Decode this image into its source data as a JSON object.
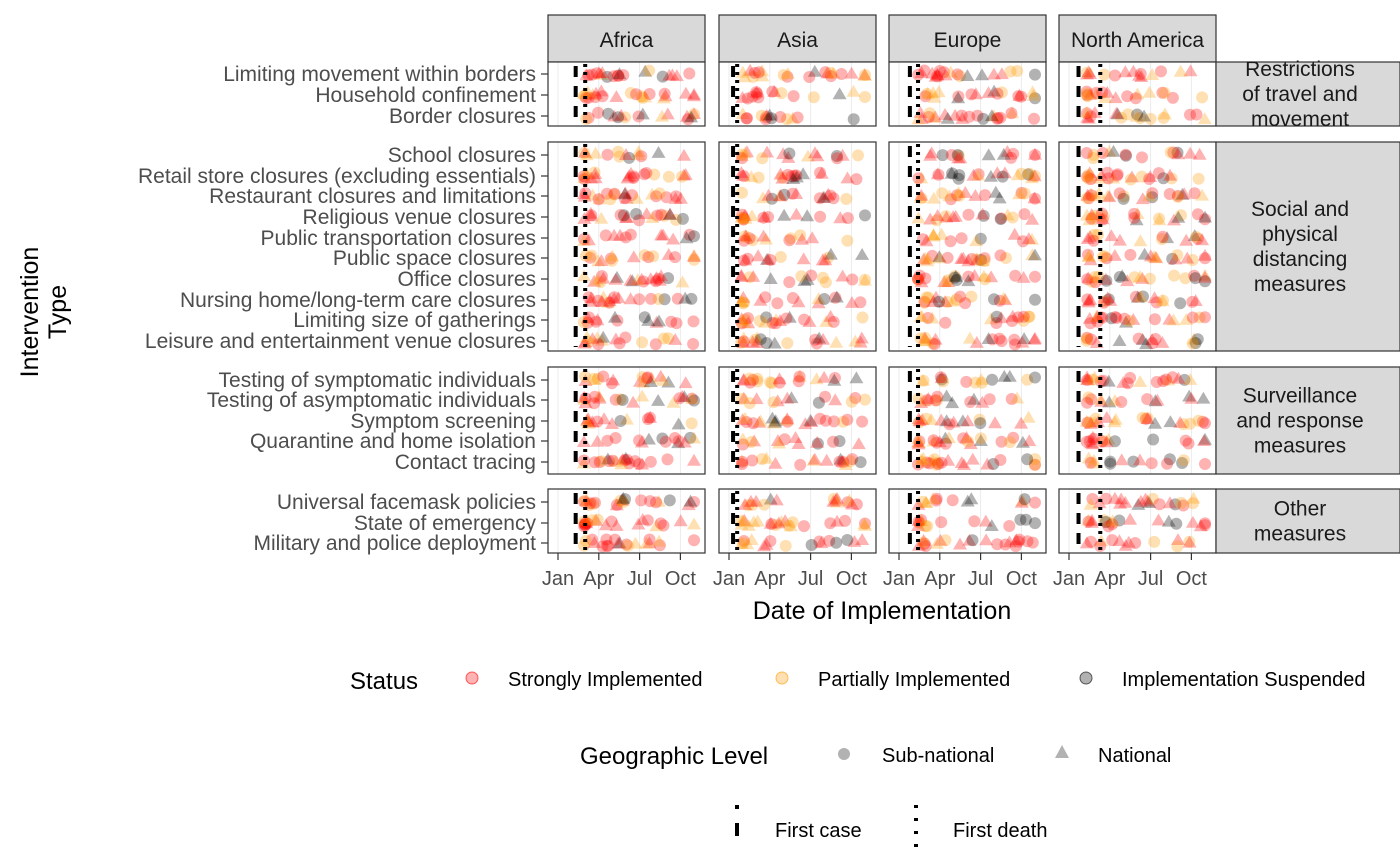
{
  "chart_data": {
    "type": "scatter",
    "xlabel": "Date of Implementation",
    "ylabel": "Intervention Type",
    "x_ticks": [
      "Jan",
      "Apr",
      "Jul",
      "Oct"
    ],
    "x_range_months": [
      1,
      11
    ],
    "columns": [
      "Africa",
      "Asia",
      "Europe",
      "North America"
    ],
    "groups": [
      {
        "name": "Restrictions of travel and movement",
        "rows": [
          "Limiting movement within borders",
          "Household confinement",
          "Border closures"
        ]
      },
      {
        "name": "Social and physical distancing measures",
        "rows": [
          "School closures",
          "Retail store closures (excluding essentials)",
          "Restaurant closures and limitations",
          "Religious venue closures",
          "Public transportation closures",
          "Public space closures",
          "Office closures",
          "Nursing home/long-term care closures",
          "Limiting size of gatherings",
          "Leisure and entertainment venue closures"
        ]
      },
      {
        "name": "Surveillance and response measures",
        "rows": [
          "Testing of symptomatic individuals",
          "Testing of asymptomatic individuals",
          "Symptom screening",
          "Quarantine and home isolation",
          "Contact tracing"
        ]
      },
      {
        "name": "Other measures",
        "rows": [
          "Universal facemask policies",
          "State of emergency",
          "Military and police deployment"
        ]
      }
    ],
    "first_case": {
      "Africa": 2.3,
      "Asia": 1.3,
      "Europe": 1.8,
      "North America": 1.7
    },
    "first_death": {
      "Africa": 3.0,
      "Asia": 1.6,
      "Europe": 2.4,
      "North America": 3.3
    },
    "colors": {
      "strong": "#ff0000",
      "partial": "#ff9900",
      "suspended": "#000000"
    },
    "legend": {
      "status_title": "Status",
      "status_items": [
        {
          "key": "strong",
          "label": "Strongly Implemented"
        },
        {
          "key": "partial",
          "label": "Partially Implemented"
        },
        {
          "key": "suspended",
          "label": "Implementation Suspended"
        }
      ],
      "geo_title": "Geographic Level",
      "geo_items": [
        {
          "key": "sub",
          "label": "Sub-national"
        },
        {
          "key": "nat",
          "label": "National"
        }
      ],
      "line_items": [
        {
          "key": "case",
          "label": "First case"
        },
        {
          "key": "death",
          "label": "First death"
        }
      ]
    }
  }
}
